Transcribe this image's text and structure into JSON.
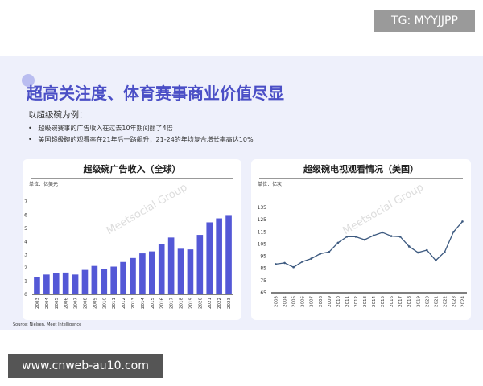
{
  "overlay": {
    "badge": "TG: MYYJJPP",
    "url": "www.cnweb-au10.com"
  },
  "slide": {
    "title": "超高关注度、体育赛事商业价值尽显",
    "intro": "以超级碗为例：",
    "bullets": [
      "超级碗赛事的广告收入在过去10年期间翻了4倍",
      "美国超级碗的观看率在21年后一路飙升，21-24的年均复合增长率高达10%"
    ],
    "source": "Source: Nielsen, Meet Intelligence",
    "watermark": "Meetsocial Group"
  },
  "colors": {
    "title": "#4b4fc6",
    "bar": "#5458d6",
    "line": "#3d5a80"
  },
  "chart_data": [
    {
      "type": "bar",
      "title": "超级碗广告收入（全球）",
      "unit": "单位：亿美元",
      "categories": [
        "2003",
        "2004",
        "2005",
        "2006",
        "2007",
        "2008",
        "2009",
        "2010",
        "2011",
        "2012",
        "2013",
        "2014",
        "2015",
        "2016",
        "2017",
        "2018",
        "2019",
        "2020",
        "2021",
        "2022",
        "2023"
      ],
      "values": [
        1.3,
        1.5,
        1.6,
        1.65,
        1.5,
        1.85,
        2.15,
        1.9,
        2.1,
        2.45,
        2.75,
        3.1,
        3.25,
        3.8,
        4.3,
        3.45,
        3.4,
        4.5,
        5.45,
        5.75,
        6.0
      ],
      "ylim": [
        0,
        7
      ],
      "yticks": [
        0,
        1,
        2,
        3,
        4,
        5,
        6,
        7
      ],
      "grid": false
    },
    {
      "type": "line",
      "title": "超级碗电视观看情况（美国）",
      "unit": "单位：亿次",
      "categories": [
        "2003",
        "2004",
        "2005",
        "2006",
        "2007",
        "2008",
        "2009",
        "2010",
        "2011",
        "2012",
        "2013",
        "2014",
        "2015",
        "2016",
        "2017",
        "2018",
        "2019",
        "2020",
        "2021",
        "2022",
        "2023",
        "2024"
      ],
      "values": [
        88.5,
        89.5,
        86,
        90.5,
        93,
        97,
        98.5,
        106,
        111,
        111,
        108.5,
        112,
        114.5,
        111.5,
        111,
        103,
        98,
        100,
        91.5,
        98.5,
        115,
        123.5
      ],
      "ylim": [
        65,
        135
      ],
      "yticks": [
        65,
        75,
        85,
        95,
        105,
        115,
        125,
        135
      ],
      "grid": false
    }
  ]
}
